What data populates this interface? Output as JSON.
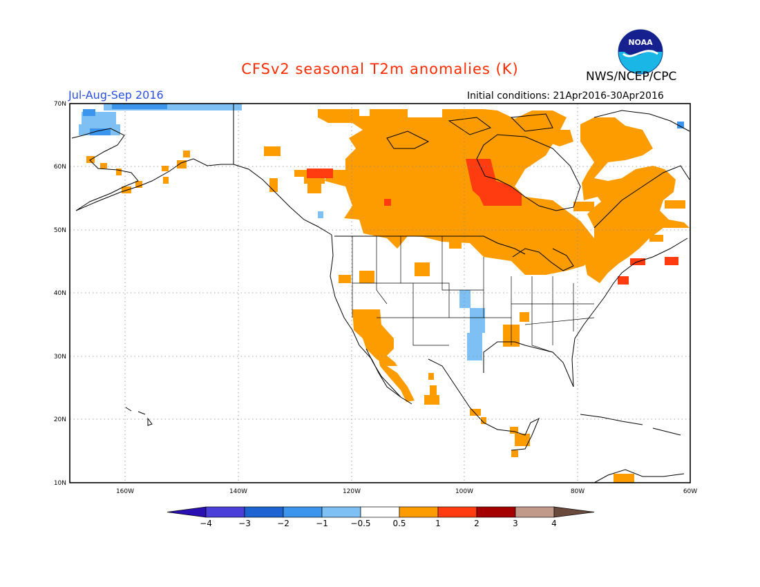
{
  "title": "CFSv2 seasonal T2m anomalies (K)",
  "agency": "NWS/NCEP/CPC",
  "logo_text": "NOAA",
  "period": "Jul-Aug-Sep 2016",
  "initial_conditions": "Initial conditions: 21Apr2016-30Apr2016",
  "lat_labels": [
    "70N",
    "60N",
    "50N",
    "40N",
    "30N",
    "20N",
    "10N"
  ],
  "lon_labels": [
    "160W",
    "140W",
    "120W",
    "100W",
    "80W",
    "60W"
  ],
  "colorbar": {
    "labels": [
      "-4",
      "-3",
      "-2",
      "-1",
      "-0.5",
      "0.5",
      "1",
      "2",
      "3",
      "4"
    ],
    "colors": [
      "#2a10b0",
      "#4b3fd9",
      "#1d64d2",
      "#3c95ec",
      "#7ec0f4",
      "#ffffff",
      "#fd9c00",
      "#ff3c10",
      "#a40000",
      "#c29a8a",
      "#6a4a3c"
    ]
  },
  "legend_colors": {
    "warm_05_1": "#fd9c00",
    "warm_1_2": "#ff3c10",
    "cold_05_1": "#7ec0f4",
    "cold_1_2": "#3c95ec"
  }
}
